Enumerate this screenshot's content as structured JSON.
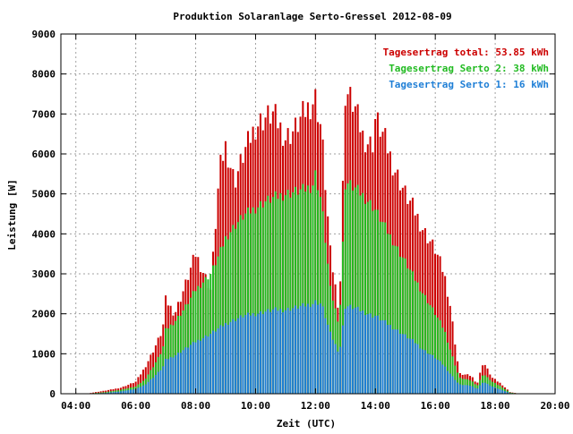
{
  "chart_data": {
    "type": "bar",
    "stacked": true,
    "title": "Produktion Solaranlage Serto-Gressel 2012-08-09",
    "xlabel": "Zeit (UTC)",
    "ylabel": "Leistung [W]",
    "xlim": [
      3.5,
      20.0
    ],
    "ylim": [
      0,
      9000
    ],
    "grid": true,
    "legend_position": "top-right",
    "x_ticks": [
      {
        "value": 4,
        "label": "04:00"
      },
      {
        "value": 6,
        "label": "06:00"
      },
      {
        "value": 8,
        "label": "08:00"
      },
      {
        "value": 10,
        "label": "10:00"
      },
      {
        "value": 12,
        "label": "12:00"
      },
      {
        "value": 14,
        "label": "14:00"
      },
      {
        "value": 16,
        "label": "16:00"
      },
      {
        "value": 18,
        "label": "18:00"
      },
      {
        "value": 20,
        "label": "20:00"
      }
    ],
    "y_ticks": [
      {
        "value": 0,
        "label": "0"
      },
      {
        "value": 1000,
        "label": "1000"
      },
      {
        "value": 2000,
        "label": "2000"
      },
      {
        "value": 3000,
        "label": "3000"
      },
      {
        "value": 4000,
        "label": "4000"
      },
      {
        "value": 5000,
        "label": "5000"
      },
      {
        "value": 6000,
        "label": "6000"
      },
      {
        "value": 7000,
        "label": "7000"
      },
      {
        "value": 8000,
        "label": "8000"
      },
      {
        "value": 9000,
        "label": "9000"
      }
    ],
    "legend": [
      {
        "label": "Tagesertrag total: 53.85 kWh",
        "color": "#cc0000"
      },
      {
        "label": "Tagesertrag Serto 2: 38 kWh",
        "color": "#22bb22"
      },
      {
        "label": "Tagesertrag Serto 1: 16 kWh",
        "color": "#1f7fd6"
      }
    ],
    "colors": {
      "total": "#cc0000",
      "serto2": "#22bb22",
      "serto1": "#1f7fd6",
      "grid": "#a0a0a0",
      "axis": "#000000"
    },
    "bar_interval_hours": 0.0833,
    "series": [
      {
        "name": "total",
        "color": "#cc0000",
        "points": [
          [
            4.5,
            20
          ],
          [
            5.0,
            80
          ],
          [
            5.5,
            150
          ],
          [
            6.0,
            300
          ],
          [
            6.3,
            650
          ],
          [
            6.6,
            1100
          ],
          [
            6.9,
            1600
          ],
          [
            7.0,
            2350
          ],
          [
            7.3,
            2000
          ],
          [
            7.6,
            2600
          ],
          [
            8.0,
            3500
          ],
          [
            8.5,
            2600
          ],
          [
            8.8,
            5600
          ],
          [
            9.0,
            6200
          ],
          [
            9.3,
            5300
          ],
          [
            9.6,
            6000
          ],
          [
            10.0,
            6700
          ],
          [
            10.3,
            6900
          ],
          [
            10.6,
            7000
          ],
          [
            11.0,
            6400
          ],
          [
            11.3,
            6600
          ],
          [
            11.6,
            7000
          ],
          [
            11.9,
            7300
          ],
          [
            12.0,
            7400
          ],
          [
            12.2,
            6600
          ],
          [
            12.5,
            3500
          ],
          [
            12.8,
            2000
          ],
          [
            13.0,
            7600
          ],
          [
            13.3,
            7200
          ],
          [
            13.6,
            6400
          ],
          [
            13.9,
            6200
          ],
          [
            14.0,
            6900
          ],
          [
            14.3,
            6400
          ],
          [
            14.6,
            5700
          ],
          [
            15.0,
            5000
          ],
          [
            15.3,
            4600
          ],
          [
            15.6,
            4100
          ],
          [
            16.0,
            3600
          ],
          [
            16.3,
            3000
          ],
          [
            16.5,
            2200
          ],
          [
            16.8,
            500
          ],
          [
            17.2,
            450
          ],
          [
            17.4,
            250
          ],
          [
            17.6,
            800
          ],
          [
            17.9,
            400
          ],
          [
            18.2,
            250
          ],
          [
            18.5,
            40
          ],
          [
            18.8,
            0
          ]
        ]
      },
      {
        "name": "Tagesertrag Serto 2",
        "color": "#22bb22",
        "points": [
          [
            4.5,
            10
          ],
          [
            5.0,
            40
          ],
          [
            5.5,
            100
          ],
          [
            6.0,
            180
          ],
          [
            6.3,
            350
          ],
          [
            6.6,
            700
          ],
          [
            6.9,
            1100
          ],
          [
            7.0,
            1600
          ],
          [
            7.3,
            1800
          ],
          [
            7.6,
            2100
          ],
          [
            8.0,
            2600
          ],
          [
            8.5,
            3000
          ],
          [
            8.8,
            3500
          ],
          [
            9.0,
            3900
          ],
          [
            9.3,
            4200
          ],
          [
            9.6,
            4450
          ],
          [
            10.0,
            4650
          ],
          [
            10.3,
            4800
          ],
          [
            10.6,
            4900
          ],
          [
            11.0,
            5000
          ],
          [
            11.3,
            5050
          ],
          [
            11.6,
            5100
          ],
          [
            11.9,
            5200
          ],
          [
            12.0,
            5500
          ],
          [
            12.2,
            4800
          ],
          [
            12.5,
            2600
          ],
          [
            12.8,
            1700
          ],
          [
            13.0,
            5300
          ],
          [
            13.3,
            5150
          ],
          [
            13.6,
            4950
          ],
          [
            13.9,
            4700
          ],
          [
            14.0,
            4600
          ],
          [
            14.3,
            4200
          ],
          [
            14.6,
            3800
          ],
          [
            15.0,
            3300
          ],
          [
            15.3,
            2900
          ],
          [
            15.6,
            2500
          ],
          [
            16.0,
            2000
          ],
          [
            16.3,
            1600
          ],
          [
            16.5,
            1100
          ],
          [
            16.8,
            400
          ],
          [
            17.2,
            330
          ],
          [
            17.4,
            200
          ],
          [
            17.6,
            500
          ],
          [
            17.9,
            300
          ],
          [
            18.2,
            180
          ],
          [
            18.5,
            30
          ],
          [
            18.8,
            0
          ]
        ]
      },
      {
        "name": "Tagesertrag Serto 1",
        "color": "#1f7fd6",
        "points": [
          [
            4.5,
            5
          ],
          [
            5.0,
            20
          ],
          [
            5.5,
            60
          ],
          [
            6.0,
            120
          ],
          [
            6.3,
            220
          ],
          [
            6.6,
            420
          ],
          [
            6.9,
            650
          ],
          [
            7.0,
            850
          ],
          [
            7.3,
            950
          ],
          [
            7.6,
            1100
          ],
          [
            8.0,
            1300
          ],
          [
            8.5,
            1500
          ],
          [
            8.8,
            1650
          ],
          [
            9.0,
            1750
          ],
          [
            9.3,
            1850
          ],
          [
            9.6,
            1950
          ],
          [
            10.0,
            2000
          ],
          [
            10.3,
            2050
          ],
          [
            10.6,
            2100
          ],
          [
            11.0,
            2100
          ],
          [
            11.3,
            2150
          ],
          [
            11.6,
            2200
          ],
          [
            11.9,
            2250
          ],
          [
            12.0,
            2300
          ],
          [
            12.2,
            2250
          ],
          [
            12.5,
            1500
          ],
          [
            12.8,
            1000
          ],
          [
            13.0,
            2200
          ],
          [
            13.3,
            2150
          ],
          [
            13.6,
            2050
          ],
          [
            13.9,
            1950
          ],
          [
            14.0,
            1950
          ],
          [
            14.3,
            1800
          ],
          [
            14.6,
            1650
          ],
          [
            15.0,
            1450
          ],
          [
            15.3,
            1300
          ],
          [
            15.6,
            1100
          ],
          [
            16.0,
            900
          ],
          [
            16.3,
            700
          ],
          [
            16.5,
            500
          ],
          [
            16.8,
            230
          ],
          [
            17.2,
            200
          ],
          [
            17.4,
            120
          ],
          [
            17.6,
            300
          ],
          [
            17.9,
            180
          ],
          [
            18.2,
            100
          ],
          [
            18.5,
            15
          ],
          [
            18.8,
            0
          ]
        ]
      }
    ]
  }
}
